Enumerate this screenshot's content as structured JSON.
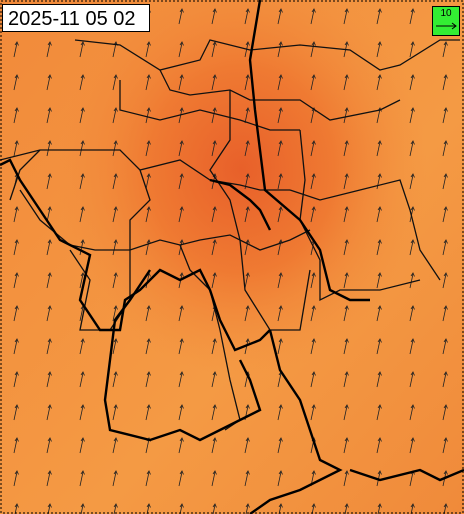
{
  "timestamp": "2025-11 05 02",
  "legend": {
    "label": "10"
  }
}
